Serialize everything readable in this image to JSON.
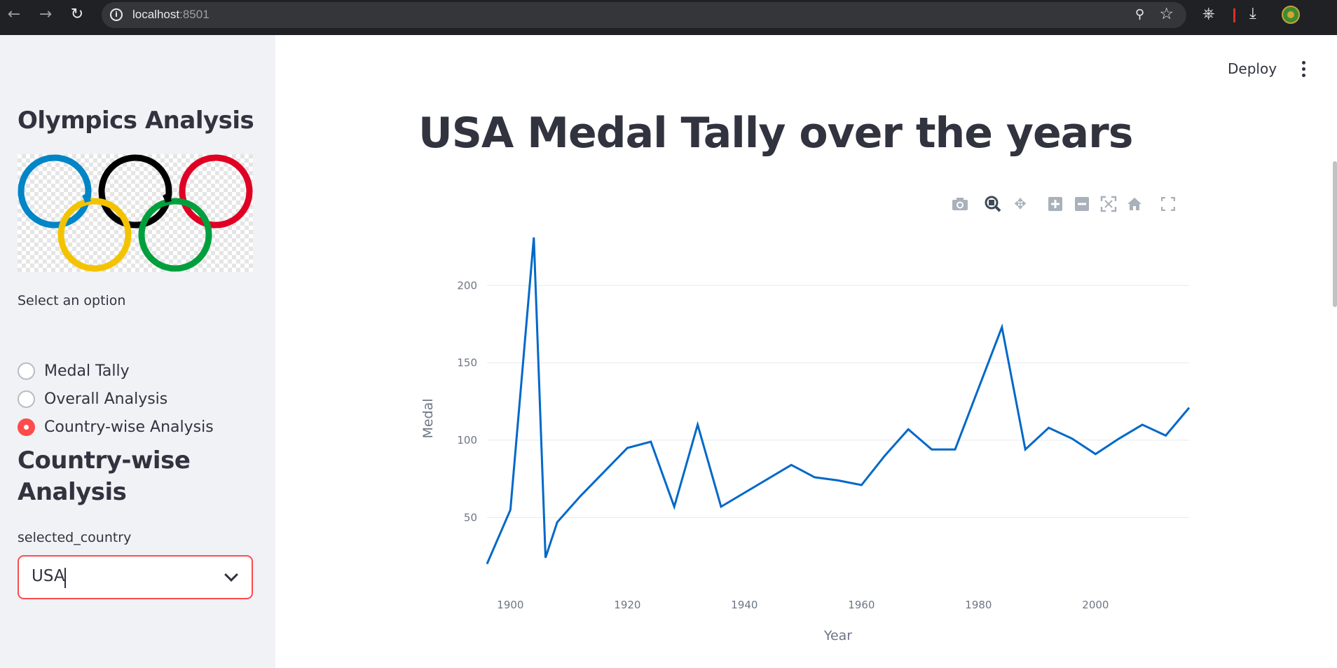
{
  "browser": {
    "url_host": "localhost",
    "url_port": ":8501"
  },
  "sidebar": {
    "title": "Olympics Analysis",
    "radio_label": "Select an option",
    "radio_options": [
      {
        "label": "Medal Tally",
        "checked": false
      },
      {
        "label": "Overall Analysis",
        "checked": false
      },
      {
        "label": "Country-wise Analysis",
        "checked": true
      }
    ],
    "section_title": "Country-wise Analysis",
    "select_label": "selected_country",
    "select_value": "USA"
  },
  "header": {
    "deploy_label": "Deploy"
  },
  "main": {
    "title": "USA Medal Tally over the years"
  },
  "colors": {
    "accent": "#ff4b4b",
    "line": "#0068c9",
    "sidebar_bg": "#f0f2f6",
    "text": "#31333f"
  },
  "chart_data": {
    "type": "line",
    "xlabel": "Year",
    "ylabel": "Medal",
    "xlim": [
      1896,
      2016
    ],
    "ylim": [
      13,
      235
    ],
    "x_ticks": [
      1900,
      1920,
      1940,
      1960,
      1980,
      2000
    ],
    "y_ticks": [
      50,
      100,
      150,
      200
    ],
    "grid": true,
    "legend": false,
    "x": [
      1896,
      1900,
      1904,
      1906,
      1908,
      1912,
      1920,
      1924,
      1928,
      1932,
      1936,
      1948,
      1952,
      1956,
      1960,
      1964,
      1968,
      1972,
      1976,
      1984,
      1988,
      1992,
      1996,
      2000,
      2004,
      2008,
      2012,
      2016
    ],
    "y": [
      20,
      55,
      231,
      24,
      47,
      64,
      95,
      99,
      57,
      110,
      57,
      84,
      76,
      74,
      71,
      90,
      107,
      94,
      94,
      173,
      94,
      108,
      101,
      91,
      101,
      110,
      103,
      121
    ]
  }
}
